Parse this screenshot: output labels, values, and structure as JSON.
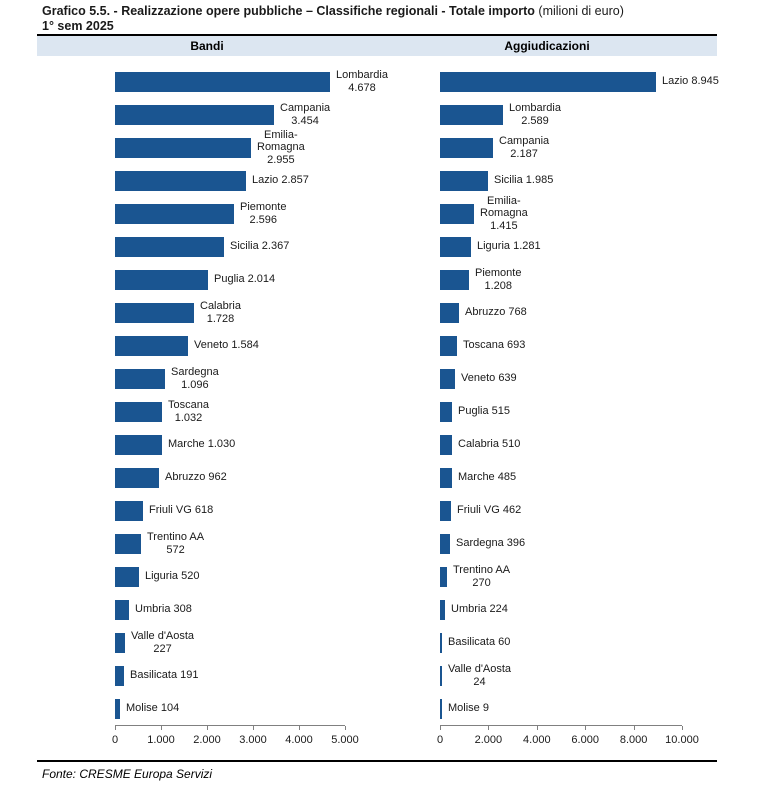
{
  "title": {
    "bold_part": "Grafico 5.5. - Realizzazione opere pubbliche – Classifiche regionali - Totale importo",
    "normal_part": " (milioni di euro)",
    "line2": "1° sem 2025"
  },
  "footer": {
    "source": "Fonte: CRESME Europa Servizi"
  },
  "colors": {
    "bar": "#1A5591",
    "header_bg": "#DCE6F1",
    "axis_line": "#808080",
    "rule": "#000000"
  },
  "chart_data": [
    {
      "type": "bar",
      "orientation": "horizontal",
      "title": "Bandi",
      "xlabel": "",
      "ylabel": "",
      "grid": false,
      "xlim": [
        0,
        5000
      ],
      "x_ticks": [
        "0",
        "1.000",
        "2.000",
        "3.000",
        "4.000",
        "5.000"
      ],
      "categories": [
        "Lombardia",
        "Campania",
        "Emilia-Romagna",
        "Lazio",
        "Piemonte",
        "Sicilia",
        "Puglia",
        "Calabria",
        "Veneto",
        "Sardegna",
        "Toscana",
        "Marche",
        "Abruzzo",
        "Friuli VG",
        "Trentino AA",
        "Liguria",
        "Umbria",
        "Valle d'Aosta",
        "Basilicata",
        "Molise"
      ],
      "values": [
        4678,
        3454,
        2955,
        2857,
        2596,
        2367,
        2014,
        1728,
        1584,
        1096,
        1032,
        1030,
        962,
        618,
        572,
        520,
        308,
        227,
        191,
        104
      ],
      "bar_label_lines": [
        [
          "Lombardia",
          "4.678"
        ],
        [
          "Campania",
          "3.454"
        ],
        [
          "Emilia-",
          "Romagna",
          "2.955"
        ],
        [
          "Lazio 2.857"
        ],
        [
          "Piemonte",
          "2.596"
        ],
        [
          "Sicilia 2.367"
        ],
        [
          "Puglia 2.014"
        ],
        [
          "Calabria",
          "1.728"
        ],
        [
          "Veneto 1.584"
        ],
        [
          "Sardegna",
          "1.096"
        ],
        [
          "Toscana",
          "1.032"
        ],
        [
          "Marche 1.030"
        ],
        [
          "Abruzzo 962"
        ],
        [
          "Friuli VG 618"
        ],
        [
          "Trentino AA",
          "572"
        ],
        [
          "Liguria 520"
        ],
        [
          "Umbria 308"
        ],
        [
          "Valle d'Aosta",
          "227"
        ],
        [
          "Basilicata 191"
        ],
        [
          "Molise 104"
        ]
      ]
    },
    {
      "type": "bar",
      "orientation": "horizontal",
      "title": "Aggiudicazioni",
      "xlabel": "",
      "ylabel": "",
      "grid": false,
      "xlim": [
        0,
        10000
      ],
      "x_ticks": [
        "0",
        "2.000",
        "4.000",
        "6.000",
        "8.000",
        "10.000"
      ],
      "categories": [
        "Lazio",
        "Lombardia",
        "Campania",
        "Sicilia",
        "Emilia-Romagna",
        "Liguria",
        "Piemonte",
        "Abruzzo",
        "Toscana",
        "Veneto",
        "Puglia",
        "Calabria",
        "Marche",
        "Friuli VG",
        "Sardegna",
        "Trentino AA",
        "Umbria",
        "Basilicata",
        "Valle d'Aosta",
        "Molise"
      ],
      "values": [
        8945,
        2589,
        2187,
        1985,
        1415,
        1281,
        1208,
        768,
        693,
        639,
        515,
        510,
        485,
        462,
        396,
        270,
        224,
        60,
        24,
        9
      ],
      "bar_label_lines": [
        [
          "Lazio 8.945"
        ],
        [
          "Lombardia",
          "2.589"
        ],
        [
          "Campania",
          "2.187"
        ],
        [
          "Sicilia 1.985"
        ],
        [
          "Emilia-",
          "Romagna",
          "1.415"
        ],
        [
          "Liguria 1.281"
        ],
        [
          "Piemonte",
          "1.208"
        ],
        [
          "Abruzzo 768"
        ],
        [
          "Toscana 693"
        ],
        [
          "Veneto 639"
        ],
        [
          "Puglia 515"
        ],
        [
          "Calabria 510"
        ],
        [
          "Marche 485"
        ],
        [
          "Friuli VG 462"
        ],
        [
          "Sardegna 396"
        ],
        [
          "Trentino AA",
          "270"
        ],
        [
          "Umbria 224"
        ],
        [
          "Basilicata 60"
        ],
        [
          "Valle d'Aosta",
          "24"
        ],
        [
          "Molise 9"
        ]
      ]
    }
  ]
}
